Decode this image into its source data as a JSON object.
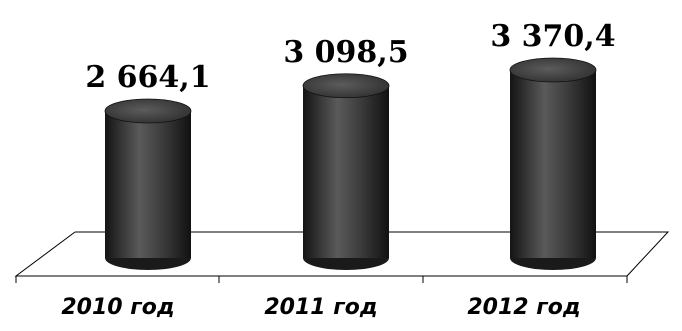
{
  "chart_data": {
    "type": "bar",
    "style": "3d-cylinder",
    "categories": [
      "2010 год",
      "2011 год",
      "2012 год"
    ],
    "values": [
      2664.1,
      3098.5,
      3370.4
    ],
    "value_labels": [
      "2 664,1",
      "3 098,5",
      "3 370,4"
    ],
    "title": "",
    "xlabel": "",
    "ylabel": "",
    "grid": false,
    "legend": "none",
    "colors": {
      "cylinder_base": "#1c1c1c",
      "cylinder_mid": "#5a5a5a",
      "cylinder_top": "#3a3a3a",
      "floor_line": "#000000"
    }
  }
}
